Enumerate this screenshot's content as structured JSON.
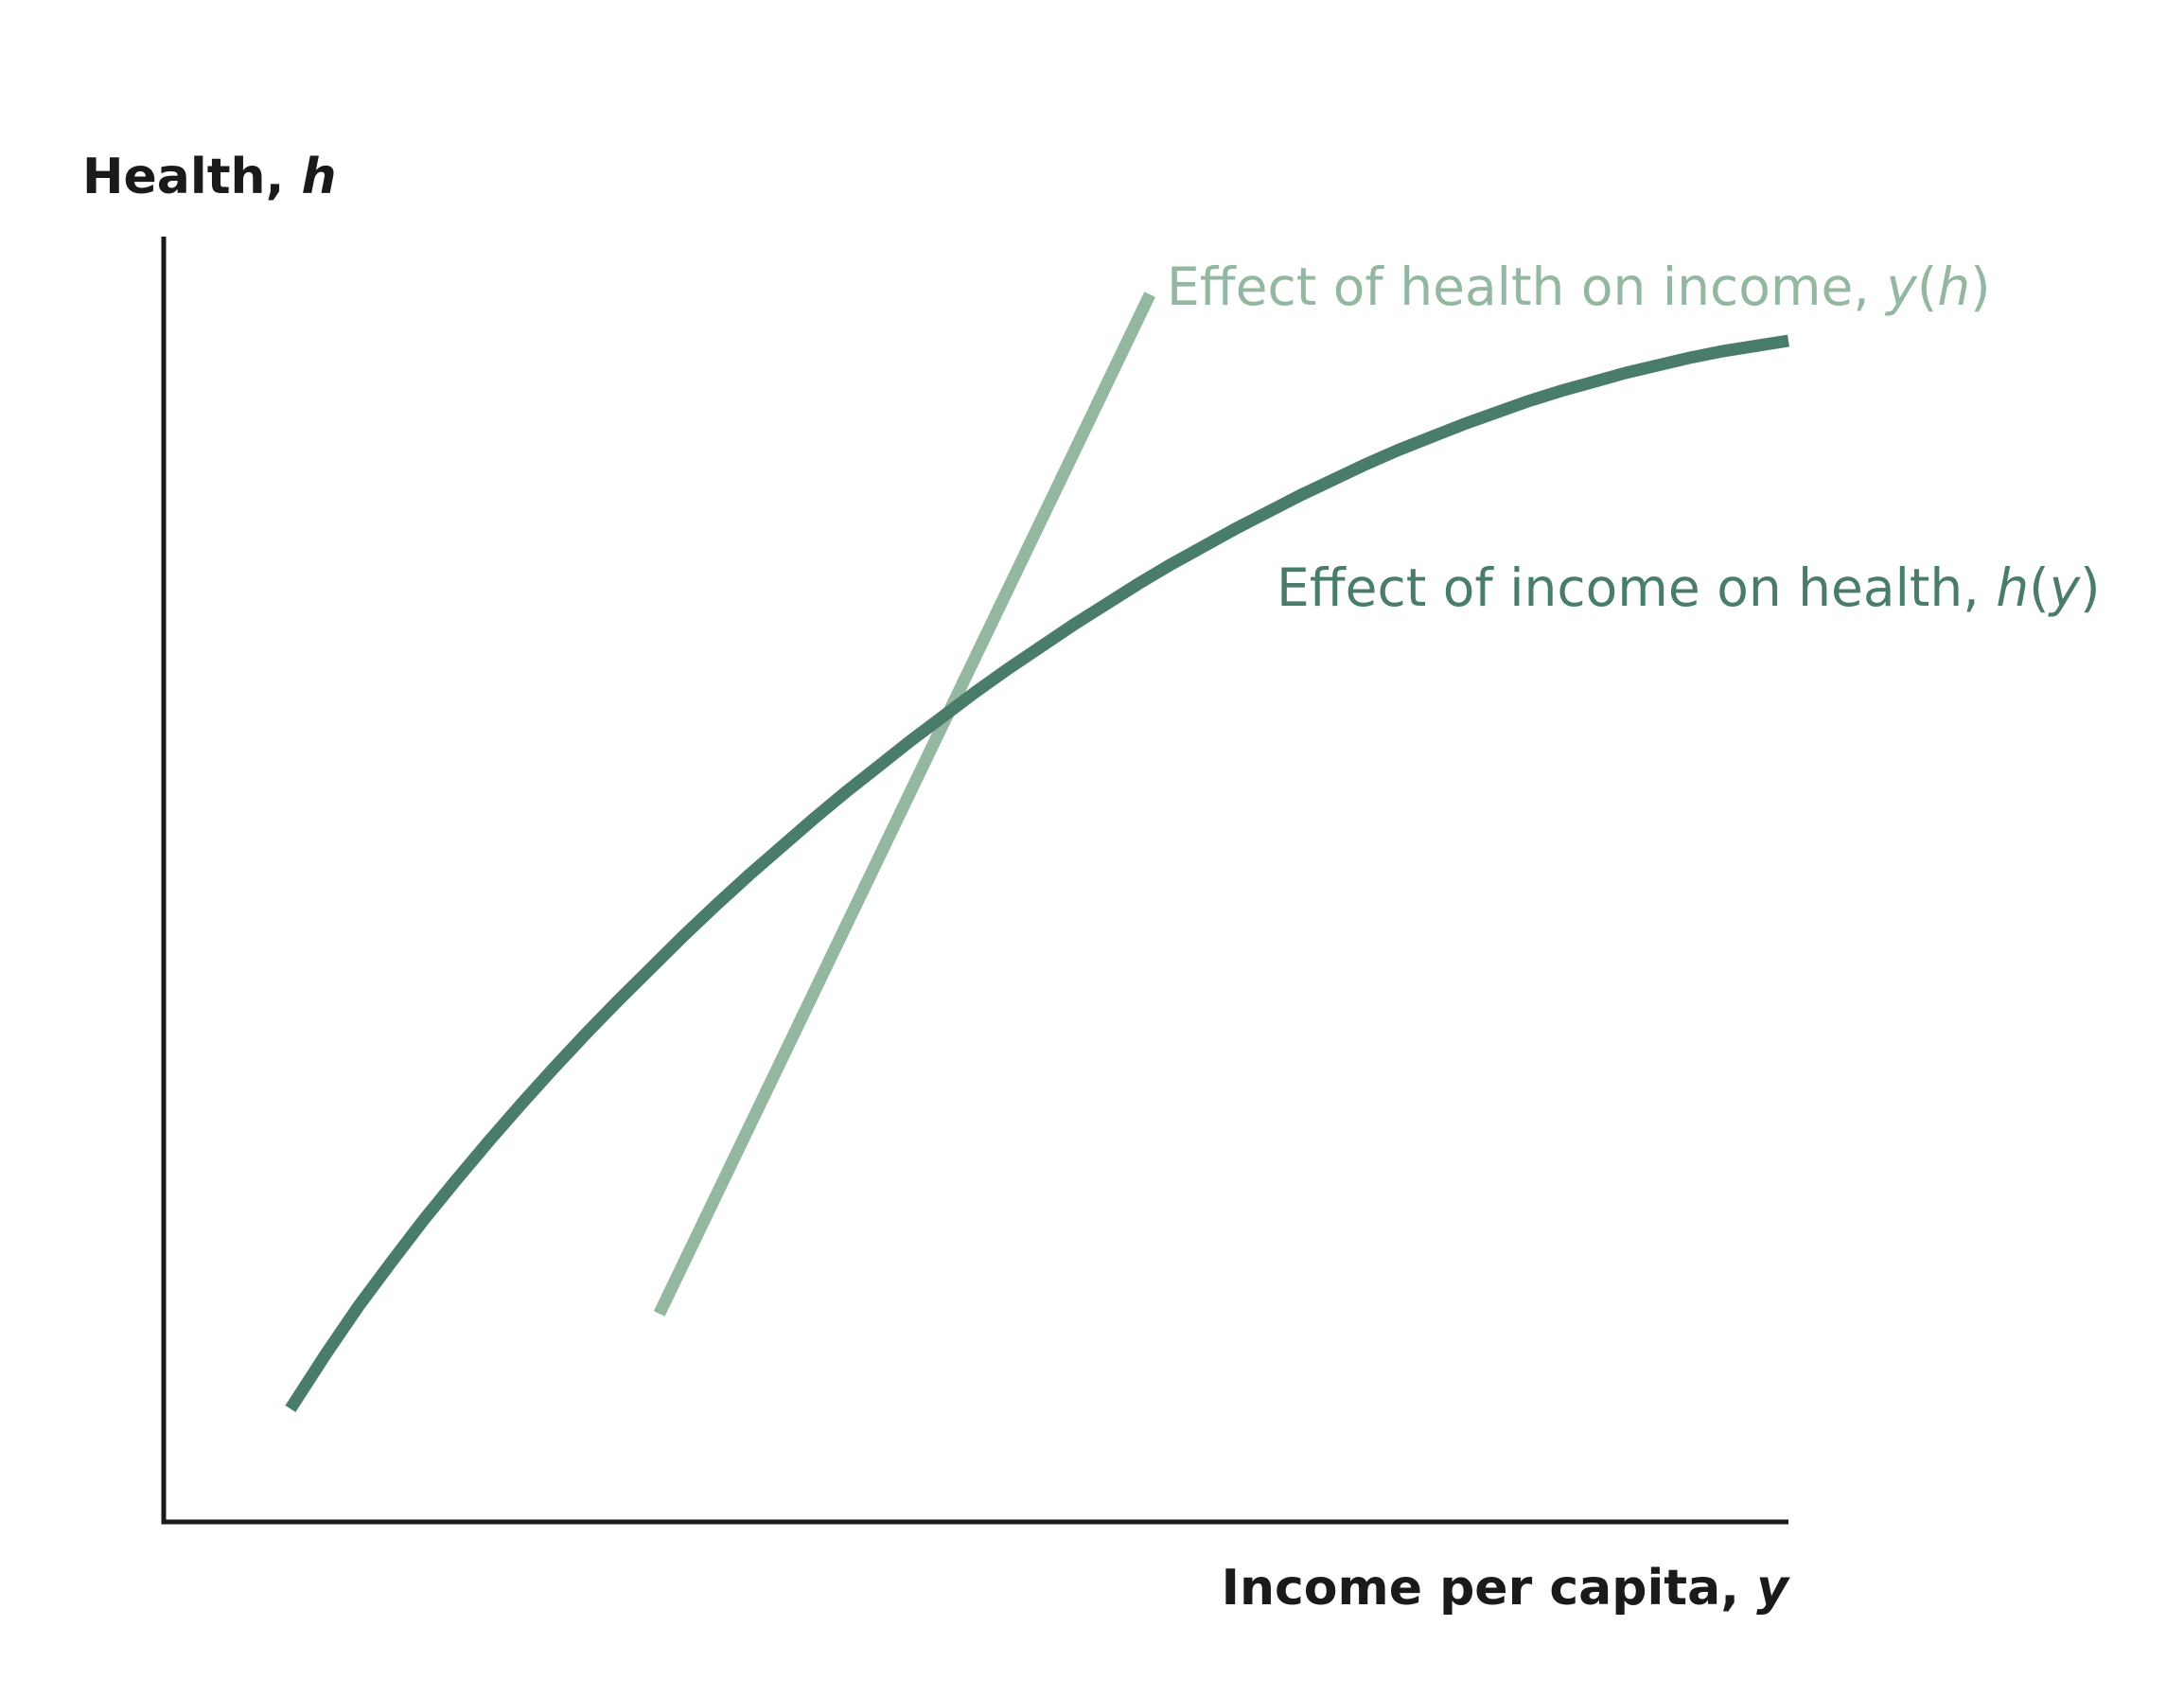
{
  "chart_data": {
    "type": "line",
    "xlabel": {
      "text": "Income per capita, ",
      "var": "y"
    },
    "ylabel": {
      "text": "Health, ",
      "var": "h"
    },
    "xlim": [
      0,
      100
    ],
    "ylim": [
      0,
      100
    ],
    "grid": false,
    "ticks": false,
    "colors": {
      "axis": "#1a1a1a",
      "health_curve": "#4a7d69",
      "income_curve": "#93b7a1"
    },
    "series": [
      {
        "key": "hy",
        "label_pre": "Effect of income on health, ",
        "label_fn": "h",
        "label_arg": "y",
        "points": [
          [
            7.8,
            8.8
          ],
          [
            10,
            13.1
          ],
          [
            12,
            16.8
          ],
          [
            14,
            20.2
          ],
          [
            16,
            23.5
          ],
          [
            18,
            26.6
          ],
          [
            20,
            29.6
          ],
          [
            22,
            32.5
          ],
          [
            24,
            35.3
          ],
          [
            26,
            38
          ],
          [
            28,
            40.6
          ],
          [
            30,
            43.1
          ],
          [
            32,
            45.6
          ],
          [
            34,
            48
          ],
          [
            36,
            50.3
          ],
          [
            38,
            52.5
          ],
          [
            40,
            54.7
          ],
          [
            42,
            56.8
          ],
          [
            44,
            58.8
          ],
          [
            46,
            60.8
          ],
          [
            48,
            62.7
          ],
          [
            50,
            64.6
          ],
          [
            52,
            66.4
          ],
          [
            54,
            68.1
          ],
          [
            56,
            69.8
          ],
          [
            58,
            71.4
          ],
          [
            60,
            73
          ],
          [
            62,
            74.5
          ],
          [
            64,
            75.9
          ],
          [
            66,
            77.3
          ],
          [
            68,
            78.6
          ],
          [
            70,
            79.9
          ],
          [
            72,
            81.1
          ],
          [
            74,
            82.3
          ],
          [
            76,
            83.4
          ],
          [
            78,
            84.4
          ],
          [
            80,
            85.4
          ],
          [
            82,
            86.3
          ],
          [
            84,
            87.2
          ],
          [
            86,
            88
          ],
          [
            88,
            88.7
          ],
          [
            90,
            89.4
          ],
          [
            92,
            90
          ],
          [
            94,
            90.6
          ],
          [
            96,
            91.1
          ],
          [
            98,
            91.5
          ],
          [
            100,
            91.9
          ]
        ]
      },
      {
        "key": "yh",
        "label_pre": "Effect of health on income, ",
        "label_fn": "y",
        "label_arg": "h",
        "points": [
          [
            30.5,
            16.2
          ],
          [
            60.7,
            95.5
          ]
        ]
      }
    ]
  }
}
